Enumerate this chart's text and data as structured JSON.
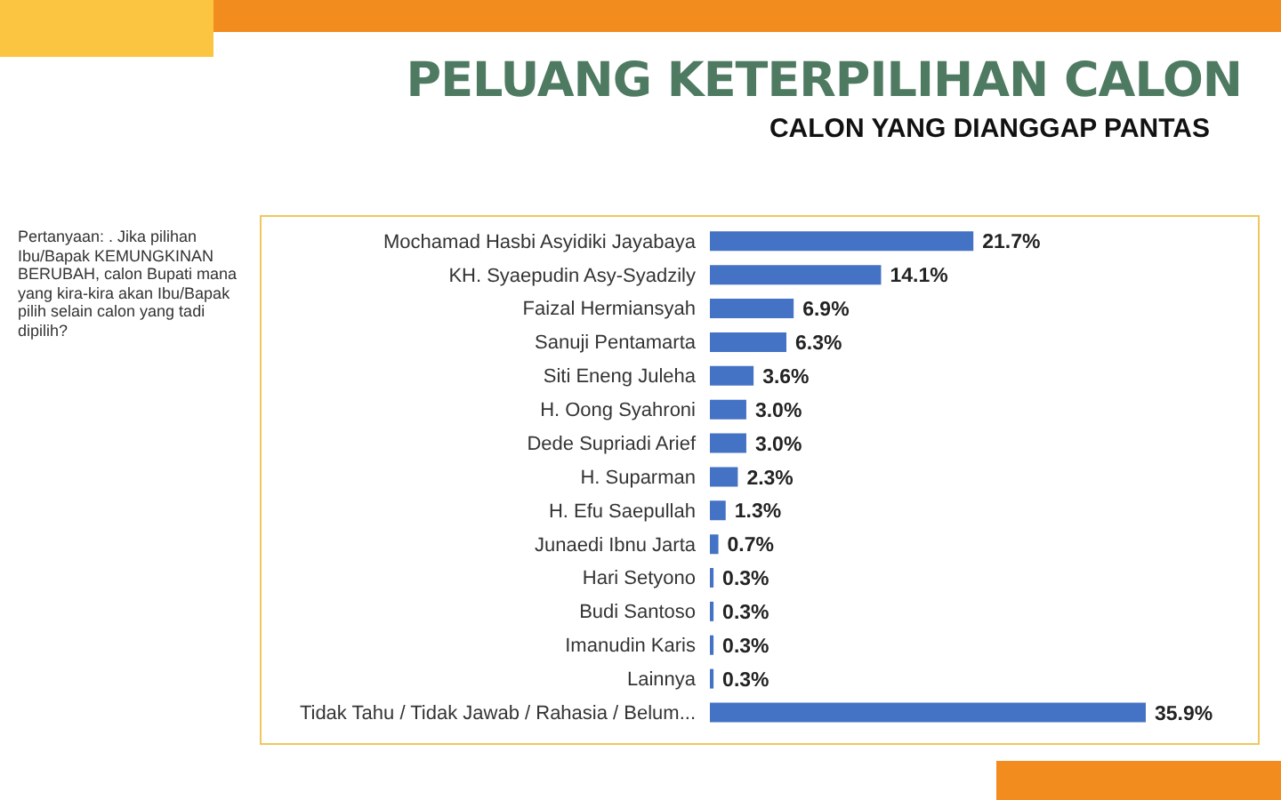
{
  "chart_data": {
    "type": "bar",
    "orientation": "horizontal",
    "tick_labels": "y",
    "title": "PELUANG KETERPILIHAN CALON",
    "subtitle": "CALON YANG DIANGGAP PANTAS",
    "annotations": [
      "Pertanyaan: . Jika pilihan Ibu/Bapak KEMUNGKINAN BERUBAH, calon Bupati mana yang kira-kira akan Ibu/Bapak pilih selain calon yang tadi dipilih?"
    ],
    "categories": [
      "Mochamad Hasbi Asyidiki Jayabaya",
      "KH. Syaepudin Asy-Syadzily",
      "Faizal Hermiansyah",
      "Sanuji Pentamarta",
      "Siti Eneng Juleha",
      "H. Oong Syahroni",
      "Dede Supriadi Arief",
      "H. Suparman",
      "H. Efu Saepullah",
      "Junaedi Ibnu Jarta",
      "Hari Setyono",
      "Budi Santoso",
      "Imanudin Karis",
      "Lainnya",
      "Tidak Tahu / Tidak Jawab / Rahasia / Belum..."
    ],
    "values": [
      21.7,
      14.1,
      6.9,
      6.3,
      3.6,
      3.0,
      3.0,
      2.3,
      1.3,
      0.7,
      0.3,
      0.3,
      0.3,
      0.3,
      35.9
    ],
    "value_labels": [
      "21.7%",
      "14.1%",
      "6.9%",
      "6.3%",
      "3.6%",
      "3.0%",
      "3.0%",
      "2.3%",
      "1.3%",
      "0.7%",
      "0.3%",
      "0.3%",
      "0.3%",
      "0.3%",
      "35.9%"
    ],
    "color": "#4472c4",
    "grid": false,
    "legend": false
  }
}
